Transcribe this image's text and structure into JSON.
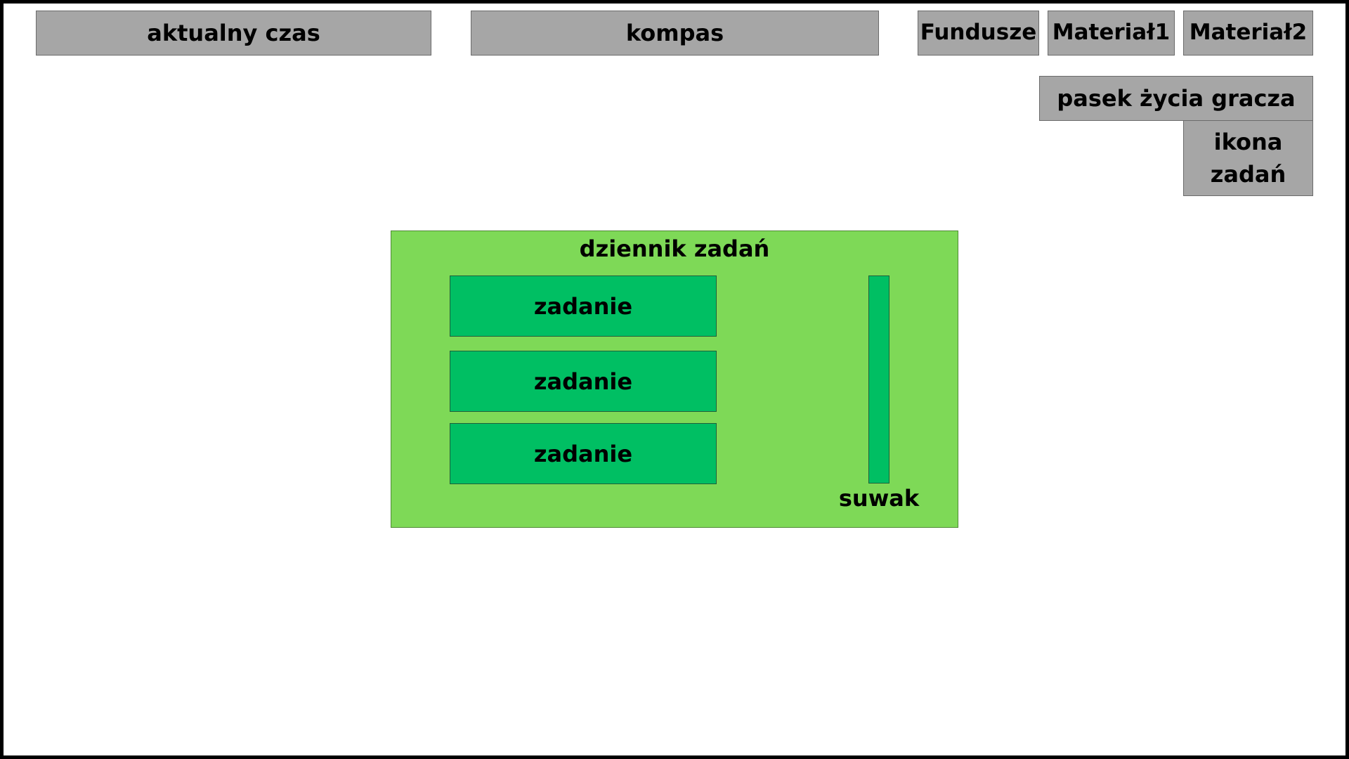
{
  "hud": {
    "current_time": "aktualny czas",
    "compass": "kompas",
    "funds": "Fundusze",
    "material1": "Materiał1",
    "material2": "Materiał2",
    "health_bar": "pasek życia gracza",
    "quest_icon_line1": "ikona",
    "quest_icon_line2": "zadań"
  },
  "journal": {
    "title": "dziennik zadań",
    "tasks": [
      "zadanie",
      "zadanie",
      "zadanie"
    ],
    "slider_label": "suwak"
  },
  "colors": {
    "hud_box": "#a6a6a6",
    "journal_background": "#7ed957",
    "task_background": "#00bf63",
    "frame_border": "#000000"
  }
}
